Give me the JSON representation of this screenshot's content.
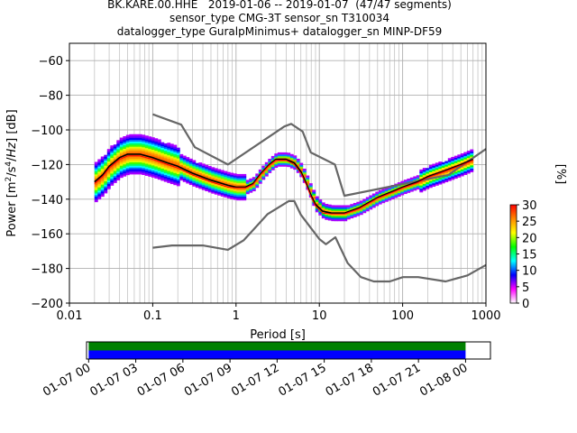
{
  "title": {
    "line1": "BK.KARE.00.HHE   2019-01-06 -- 2019-01-07  (47/47 segments)",
    "line2": "sensor_type CMG-3T sensor_sn T310034",
    "line3": "datalogger_type GuralpMinimus+ datalogger_sn MINP-DF59"
  },
  "chart_data": [
    {
      "type": "heatmap",
      "subtype": "ppsd",
      "xlabel": "Period [s]",
      "ylabel": "Power [m2/s4/Hz] [dB]",
      "xscale": "log",
      "xlim": [
        0.01,
        1000
      ],
      "ylim": [
        -200,
        -50
      ],
      "grid": true,
      "xticks": [
        0.01,
        0.1,
        1,
        10,
        100,
        1000
      ],
      "xtick_labels": [
        "0.01",
        "0.1",
        "1",
        "10",
        "100",
        "1000"
      ],
      "yticks": [
        -200,
        -180,
        -160,
        -140,
        -120,
        -100,
        -80,
        -60
      ],
      "ytick_labels": [
        "−200",
        "−180",
        "−160",
        "−140",
        "−120",
        "−100",
        "−80",
        "−60"
      ],
      "colorbar": {
        "label": "[%]",
        "range": [
          0,
          30
        ],
        "ticks": [
          0,
          5,
          10,
          15,
          20,
          25,
          30
        ],
        "tick_labels": [
          "0",
          "5",
          "10",
          "15",
          "20",
          "25",
          "30"
        ],
        "colormap": [
          "#ffffff",
          "#ff00ff",
          "#0000ff",
          "#00ffff",
          "#00ff00",
          "#ffff00",
          "#ff8800",
          "#ff0000"
        ]
      },
      "series": [
        {
          "style": "noise-model-high",
          "color": "#666666",
          "points": [
            [
              0.1,
              -91
            ],
            [
              0.22,
              -97
            ],
            [
              0.32,
              -110
            ],
            [
              0.8,
              -120
            ],
            [
              3.8,
              -98
            ],
            [
              4.6,
              -96.5
            ],
            [
              6.3,
              -101
            ],
            [
              7.9,
              -113
            ],
            [
              15.4,
              -120
            ],
            [
              20,
              -138
            ],
            [
              354.8,
              -126
            ],
            [
              1000,
              -111
            ]
          ]
        },
        {
          "style": "noise-model-low",
          "color": "#666666",
          "points": [
            [
              0.1,
              -168
            ],
            [
              0.17,
              -166.7
            ],
            [
              0.4,
              -166.7
            ],
            [
              0.8,
              -169.2
            ],
            [
              1.24,
              -163.7
            ],
            [
              2.4,
              -148.6
            ],
            [
              4.3,
              -141.1
            ],
            [
              5,
              -141.1
            ],
            [
              6,
              -149
            ],
            [
              10,
              -163
            ],
            [
              12,
              -166
            ],
            [
              15.6,
              -162
            ],
            [
              21.9,
              -177
            ],
            [
              31.6,
              -185
            ],
            [
              45,
              -187.5
            ],
            [
              70,
              -187.5
            ],
            [
              101,
              -185
            ],
            [
              154,
              -185
            ],
            [
              328,
              -187.5
            ],
            [
              600,
              -184
            ],
            [
              1000,
              -178
            ]
          ]
        },
        {
          "style": "mean",
          "color": "#000000",
          "points": [
            [
              0.02,
              -130
            ],
            [
              0.025,
              -126
            ],
            [
              0.03,
              -121
            ],
            [
              0.04,
              -116
            ],
            [
              0.05,
              -114
            ],
            [
              0.07,
              -114
            ],
            [
              0.1,
              -116
            ],
            [
              0.15,
              -119
            ],
            [
              0.2,
              -121
            ],
            [
              0.3,
              -125
            ],
            [
              0.5,
              -129
            ],
            [
              0.8,
              -132
            ],
            [
              1,
              -133
            ],
            [
              1.3,
              -133
            ],
            [
              1.6,
              -131
            ],
            [
              2,
              -125
            ],
            [
              2.5,
              -120
            ],
            [
              3,
              -117
            ],
            [
              4,
              -117
            ],
            [
              5,
              -119
            ],
            [
              6,
              -124
            ],
            [
              7,
              -131
            ],
            [
              8,
              -138
            ],
            [
              9,
              -143
            ],
            [
              11,
              -147
            ],
            [
              14,
              -148
            ],
            [
              20,
              -148
            ],
            [
              30,
              -145
            ],
            [
              50,
              -139
            ],
            [
              80,
              -135
            ],
            [
              100,
              -133
            ],
            [
              150,
              -130
            ],
            [
              200,
              -127
            ],
            [
              300,
              -124
            ],
            [
              500,
              -120
            ],
            [
              700,
              -117
            ]
          ]
        },
        {
          "style": "mode",
          "color": "#ff0000",
          "points": [
            [
              0.02,
              -131
            ],
            [
              0.025,
              -127
            ],
            [
              0.03,
              -122
            ],
            [
              0.04,
              -117
            ],
            [
              0.05,
              -115
            ],
            [
              0.07,
              -115
            ],
            [
              0.1,
              -117
            ],
            [
              0.15,
              -120
            ],
            [
              0.2,
              -122
            ],
            [
              0.3,
              -126
            ],
            [
              0.5,
              -130
            ],
            [
              0.8,
              -133
            ],
            [
              1,
              -133.5
            ],
            [
              1.3,
              -133.5
            ],
            [
              1.6,
              -131.5
            ],
            [
              2,
              -125.5
            ],
            [
              2.5,
              -120.5
            ],
            [
              3,
              -117.5
            ],
            [
              4,
              -117.5
            ],
            [
              5,
              -120
            ],
            [
              6,
              -125
            ],
            [
              7,
              -132
            ],
            [
              8,
              -139
            ],
            [
              9,
              -144
            ],
            [
              11,
              -148
            ],
            [
              14,
              -148.5
            ],
            [
              20,
              -148.5
            ],
            [
              30,
              -145.5
            ],
            [
              50,
              -139.5
            ],
            [
              80,
              -135.5
            ],
            [
              100,
              -133.5
            ],
            [
              150,
              -130.5
            ],
            [
              200,
              -127.5
            ],
            [
              300,
              -124.5
            ],
            [
              500,
              -120.5
            ],
            [
              700,
              -117.5
            ]
          ]
        }
      ]
    },
    {
      "type": "timeline",
      "xlim": [
        "2019-01-06T23:52",
        "2019-01-08T01:35"
      ],
      "xtick_labels": [
        "01-07 00",
        "01-07 03",
        "01-07 06",
        "01-07 09",
        "01-07 12",
        "01-07 15",
        "01-07 18",
        "01-07 21",
        "01-08 00"
      ],
      "bars": [
        {
          "color": "#008000",
          "start": "2019-01-07T00:00",
          "end": "2019-01-08T00:00"
        },
        {
          "color": "#0000ff",
          "start": "2019-01-07T00:00",
          "end": "2019-01-08T00:00"
        }
      ]
    }
  ]
}
